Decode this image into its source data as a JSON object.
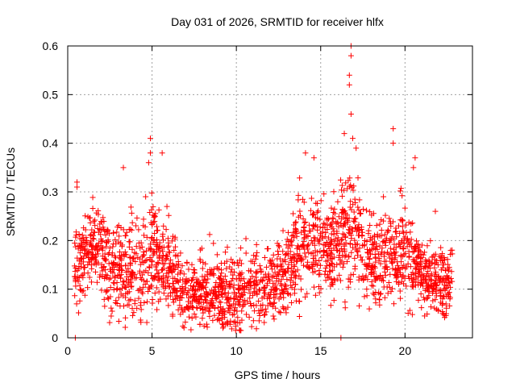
{
  "chart_data": {
    "type": "scatter",
    "title": "Day 031 of 2026, SRMTID for receiver hlfx",
    "xlabel": "GPS time / hours",
    "ylabel": "SRMTID / TECUs",
    "xlim": [
      0,
      24
    ],
    "ylim": [
      0,
      0.6
    ],
    "xticks": [
      0,
      5,
      10,
      15,
      20
    ],
    "yticks": [
      0,
      0.1,
      0.2,
      0.3,
      0.4,
      0.5,
      0.6
    ],
    "xtick_labels": [
      "0",
      "5",
      "10",
      "15",
      "20"
    ],
    "ytick_labels": [
      "0",
      "0.1",
      "0.2",
      "0.3",
      "0.4",
      "0.5",
      "0.6"
    ],
    "grid": true,
    "marker": "+",
    "color": "#ff0000",
    "x_data_range": [
      0.4,
      22.8
    ],
    "envelope_hours": [
      0.5,
      1,
      1.5,
      2,
      2.5,
      3,
      3.5,
      4,
      4.5,
      5,
      5.5,
      6,
      6.5,
      7,
      7.5,
      8,
      8.5,
      9,
      9.5,
      10,
      10.5,
      11,
      11.5,
      12,
      12.5,
      13,
      13.5,
      14,
      14.5,
      15,
      15.5,
      16,
      16.5,
      17,
      17.5,
      18,
      18.5,
      19,
      19.5,
      20,
      20.5,
      21,
      21.5,
      22,
      22.5
    ],
    "envelope_mean": [
      0.15,
      0.18,
      0.19,
      0.17,
      0.14,
      0.14,
      0.15,
      0.14,
      0.15,
      0.17,
      0.16,
      0.14,
      0.12,
      0.09,
      0.09,
      0.1,
      0.1,
      0.09,
      0.08,
      0.09,
      0.1,
      0.11,
      0.1,
      0.11,
      0.12,
      0.14,
      0.17,
      0.2,
      0.19,
      0.2,
      0.19,
      0.2,
      0.22,
      0.22,
      0.17,
      0.16,
      0.15,
      0.17,
      0.19,
      0.18,
      0.16,
      0.13,
      0.12,
      0.11,
      0.12
    ],
    "envelope_spread": [
      0.06,
      0.06,
      0.06,
      0.06,
      0.06,
      0.06,
      0.07,
      0.06,
      0.07,
      0.08,
      0.07,
      0.06,
      0.05,
      0.05,
      0.05,
      0.05,
      0.05,
      0.04,
      0.05,
      0.05,
      0.05,
      0.05,
      0.05,
      0.05,
      0.05,
      0.06,
      0.07,
      0.07,
      0.07,
      0.07,
      0.07,
      0.07,
      0.08,
      0.08,
      0.07,
      0.06,
      0.06,
      0.07,
      0.07,
      0.07,
      0.06,
      0.05,
      0.05,
      0.05,
      0.05
    ],
    "outliers": [
      {
        "x": 0.45,
        "y": 0.0
      },
      {
        "x": 0.55,
        "y": 0.32
      },
      {
        "x": 0.55,
        "y": 0.31
      },
      {
        "x": 3.3,
        "y": 0.35
      },
      {
        "x": 4.9,
        "y": 0.41
      },
      {
        "x": 4.9,
        "y": 0.38
      },
      {
        "x": 4.8,
        "y": 0.36
      },
      {
        "x": 5.6,
        "y": 0.38
      },
      {
        "x": 14.1,
        "y": 0.38
      },
      {
        "x": 14.6,
        "y": 0.37
      },
      {
        "x": 16.2,
        "y": 0.0
      },
      {
        "x": 16.4,
        "y": 0.42
      },
      {
        "x": 16.8,
        "y": 0.6
      },
      {
        "x": 16.8,
        "y": 0.58
      },
      {
        "x": 16.7,
        "y": 0.54
      },
      {
        "x": 16.7,
        "y": 0.52
      },
      {
        "x": 16.8,
        "y": 0.46
      },
      {
        "x": 16.9,
        "y": 0.41
      },
      {
        "x": 17.1,
        "y": 0.39
      },
      {
        "x": 19.3,
        "y": 0.43
      },
      {
        "x": 19.3,
        "y": 0.4
      },
      {
        "x": 20.6,
        "y": 0.37
      },
      {
        "x": 20.5,
        "y": 0.35
      },
      {
        "x": 21.8,
        "y": 0.26
      }
    ]
  }
}
